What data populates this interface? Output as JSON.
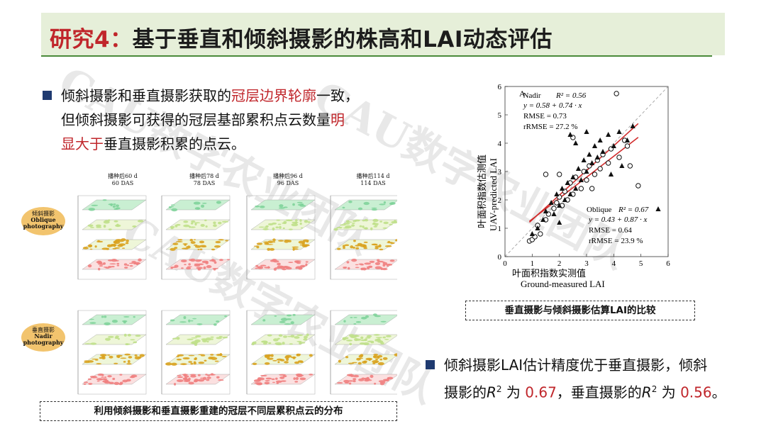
{
  "title": {
    "prefix": "研究4：",
    "text": "基于垂直和倾斜摄影的株高和LAI动态评估"
  },
  "watermark": {
    "text1": "CAU数字农业团队",
    "text2": "CAU数字农业团队",
    "text3": "CAU数字农业团队"
  },
  "bullet1": {
    "line1_a": "倾斜摄影和垂直摄影获取的",
    "line1_red": "冠层边界轮廓",
    "line1_b": "一致，",
    "line2_a": "但倾斜摄影可获得的冠层基部累积点云数量",
    "line2_red": "明",
    "line3_red": "显大于",
    "line3_b": "垂直摄影积累的点云。"
  },
  "figure_left": {
    "panels": [
      {
        "cn": "播种后60 d",
        "en": "60 DAS"
      },
      {
        "cn": "播种后78 d",
        "en": "78 DAS"
      },
      {
        "cn": "播种后96 d",
        "en": "96 DAS"
      },
      {
        "cn": "播种后114 d",
        "en": "114 DAS"
      }
    ],
    "oblique_badge": {
      "cn": "倾斜摄影",
      "en1": "Oblique",
      "en2": "photography"
    },
    "nadir_badge": {
      "cn": "垂直摄影",
      "en1": "Nadir",
      "en2": "photography"
    },
    "caption": "利用倾斜摄影和垂直摄影重建的冠层不同层累积点云的分布"
  },
  "chart_data": {
    "type": "scatter",
    "panel_letter": "A",
    "xlabel_cn": "叶面积指数实测值",
    "xlabel_en": "Ground-measured LAI",
    "ylabel_cn": "叶面积指数估测值",
    "ylabel_en": "UAV-predicted LAI",
    "xlim": [
      0,
      6
    ],
    "ylim": [
      0,
      6
    ],
    "ticks": [
      "0",
      "1",
      "2",
      "3",
      "4",
      "5",
      "6"
    ],
    "nadir": {
      "label": "Nadir",
      "r2": "R² = 0.56",
      "eq": "y = 0.58 + 0.74 · x",
      "rmse": "RMSE = 0.73",
      "rrmse": "rRMSE = 27.2 %",
      "intercept": 0.58,
      "slope": 0.74,
      "points": [
        [
          0.9,
          0.55
        ],
        [
          1.0,
          0.6
        ],
        [
          1.1,
          0.7
        ],
        [
          1.3,
          0.8
        ],
        [
          1.2,
          1.1
        ],
        [
          1.5,
          1.3
        ],
        [
          1.6,
          1.5
        ],
        [
          1.8,
          1.7
        ],
        [
          1.9,
          1.9
        ],
        [
          2.0,
          2.1
        ],
        [
          2.1,
          1.8
        ],
        [
          2.2,
          2.3
        ],
        [
          2.3,
          2.0
        ],
        [
          2.4,
          2.6
        ],
        [
          2.5,
          2.2
        ],
        [
          2.6,
          2.8
        ],
        [
          2.8,
          2.4
        ],
        [
          2.9,
          3.0
        ],
        [
          3.0,
          2.7
        ],
        [
          3.1,
          3.2
        ],
        [
          3.3,
          2.9
        ],
        [
          3.4,
          3.4
        ],
        [
          3.5,
          3.1
        ],
        [
          3.6,
          3.6
        ],
        [
          3.8,
          3.3
        ],
        [
          3.9,
          3.8
        ],
        [
          4.2,
          3.5
        ],
        [
          4.4,
          4.1
        ],
        [
          4.6,
          3.2
        ],
        [
          4.9,
          2.5
        ],
        [
          2.0,
          2.9
        ],
        [
          1.5,
          2.9
        ],
        [
          2.5,
          4.2
        ],
        [
          3.2,
          2.4
        ],
        [
          4.5,
          3.9
        ]
      ]
    },
    "oblique": {
      "label": "Oblique",
      "r2": "R² = 0.67",
      "eq": "y = 0.43 + 0.87 · x",
      "rmse": "RMSE = 0.64",
      "rrmse": "rRMSE = 23.9 %",
      "intercept": 0.43,
      "slope": 0.87,
      "points": [
        [
          1.0,
          0.8
        ],
        [
          1.2,
          1.0
        ],
        [
          1.4,
          1.3
        ],
        [
          1.5,
          1.6
        ],
        [
          1.7,
          1.9
        ],
        [
          1.8,
          1.5
        ],
        [
          1.9,
          2.2
        ],
        [
          2.0,
          1.8
        ],
        [
          2.1,
          2.4
        ],
        [
          2.2,
          2.0
        ],
        [
          2.3,
          2.6
        ],
        [
          2.4,
          2.2
        ],
        [
          2.5,
          2.8
        ],
        [
          2.6,
          2.4
        ],
        [
          2.7,
          3.1
        ],
        [
          2.8,
          2.7
        ],
        [
          2.9,
          3.4
        ],
        [
          3.0,
          3.0
        ],
        [
          3.1,
          3.6
        ],
        [
          3.2,
          3.3
        ],
        [
          3.3,
          3.9
        ],
        [
          3.4,
          3.5
        ],
        [
          3.5,
          4.1
        ],
        [
          3.6,
          3.7
        ],
        [
          3.8,
          4.3
        ],
        [
          4.0,
          3.9
        ],
        [
          4.2,
          4.4
        ],
        [
          4.5,
          4.1
        ],
        [
          4.7,
          4.6
        ],
        [
          2.4,
          4.3
        ],
        [
          2.6,
          4.0
        ],
        [
          3.9,
          2.9
        ],
        [
          4.3,
          3.2
        ],
        [
          2.0,
          1.2
        ],
        [
          3.0,
          4.4
        ]
      ]
    }
  },
  "scatter_caption": "垂直摄影与倾斜摄影估算LAI的比较",
  "bullet2": {
    "line1": "倾斜摄影LAI估计精度优于垂直摄影，倾斜",
    "line2_a": "摄影的",
    "r2a": "R",
    "sup": "2",
    "wei": " 为 ",
    "val1": "0.67",
    "mid": "，垂直摄影的",
    "r2b": "R",
    "sup2": "2",
    "wei2": " 为 ",
    "val2": "0.56",
    "end": "。"
  }
}
